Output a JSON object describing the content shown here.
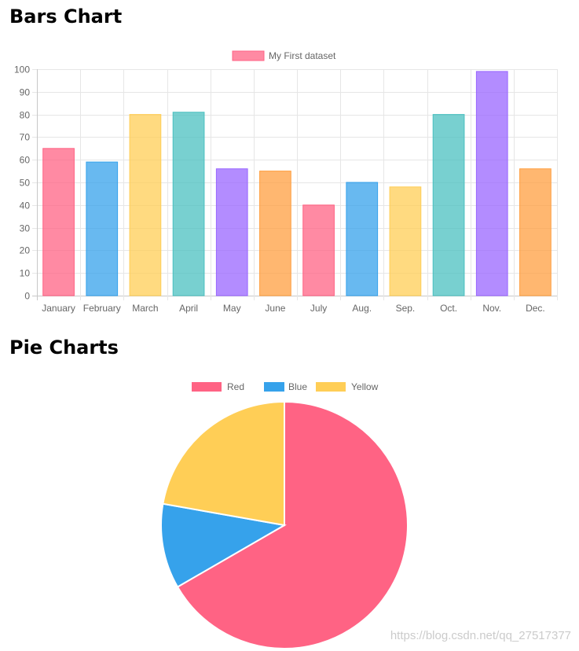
{
  "page": {
    "bars_heading": "Bars Chart",
    "pie_heading": "Pie Charts",
    "watermark": "https://blog.csdn.net/qq_27517377"
  },
  "chart_data": [
    {
      "type": "bar",
      "categories": [
        "January",
        "February",
        "March",
        "April",
        "May",
        "June",
        "July",
        "Aug.",
        "Sep.",
        "Oct.",
        "Nov.",
        "Dec."
      ],
      "series": [
        {
          "name": "My First dataset",
          "values": [
            65,
            59,
            80,
            81,
            56,
            55,
            40,
            50,
            48,
            80,
            99,
            56
          ],
          "colors": [
            "#ff6384",
            "#36a2eb",
            "#ffce56",
            "#4bc0c0",
            "#9966ff",
            "#ff9f40",
            "#ff6384",
            "#36a2eb",
            "#ffce56",
            "#4bc0c0",
            "#9966ff",
            "#ff9f40"
          ]
        }
      ],
      "yticks": [
        0,
        10,
        20,
        30,
        40,
        50,
        60,
        70,
        80,
        90,
        100
      ],
      "ylim": [
        0,
        100
      ],
      "grid": true,
      "legend": "top-center",
      "legend_color": "#ff6384"
    },
    {
      "type": "pie",
      "labels": [
        "Red",
        "Blue",
        "Yellow"
      ],
      "values": [
        300,
        50,
        100
      ],
      "colors": [
        "#ff6384",
        "#36a2eb",
        "#ffce56"
      ],
      "legend": "top-center"
    }
  ]
}
